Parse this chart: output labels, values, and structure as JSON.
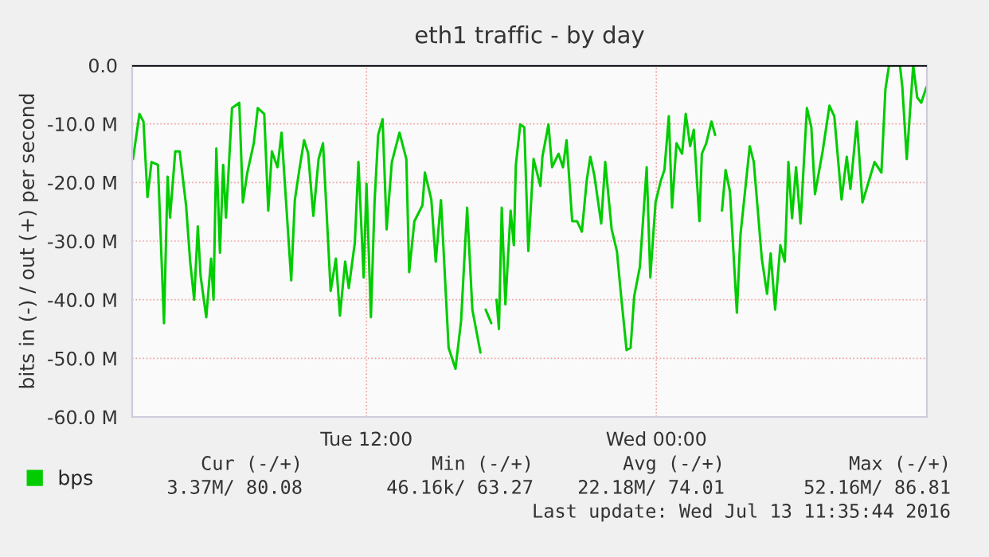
{
  "chart_data": {
    "type": "line",
    "title": "eth1 traffic - by day",
    "ylabel": "bits in (-) / out (+) per second",
    "xlim": [
      "2016-07-12T02:18",
      "2016-07-13T11:12"
    ],
    "xticks": [
      {
        "value": "2016-07-12T12:00",
        "label": "Tue 12:00"
      },
      {
        "value": "2016-07-13T00:00",
        "label": "Wed 00:00"
      }
    ],
    "ylim": [
      -60,
      0
    ],
    "yticks": [
      {
        "value": -60,
        "label": "-60.0 M"
      },
      {
        "value": -50,
        "label": "-50.0 M"
      },
      {
        "value": -40,
        "label": "-40.0 M"
      },
      {
        "value": -30,
        "label": "-30.0 M"
      },
      {
        "value": -20,
        "label": "-20.0 M"
      },
      {
        "value": -10,
        "label": "-10.0 M"
      },
      {
        "value": 0,
        "label": "0.0"
      }
    ],
    "grid": true,
    "legend": "bottom left",
    "marker": "none",
    "line_style": "solid",
    "ref_lines": [
      {
        "axis": "y",
        "value": 0,
        "color": "#000000"
      }
    ],
    "series": [
      {
        "name": "bps",
        "color": "#00cc00",
        "x": [
          "2016-07-12T02:20",
          "2016-07-12T02:36",
          "2016-07-12T02:46",
          "2016-07-12T02:56",
          "2016-07-12T03:06",
          "2016-07-12T03:22",
          "2016-07-12T03:37",
          "2016-07-12T03:46",
          "2016-07-12T03:52",
          "2016-07-12T04:05",
          "2016-07-12T04:16",
          "2016-07-12T04:32",
          "2016-07-12T04:42",
          "2016-07-12T04:52",
          "2016-07-12T05:01",
          "2016-07-12T05:08",
          "2016-07-12T05:22",
          "2016-07-12T05:34",
          "2016-07-12T05:40",
          "2016-07-12T05:47",
          "2016-07-12T05:56",
          "2016-07-12T06:04",
          "2016-07-12T06:11",
          "2016-07-12T06:26",
          "2016-07-12T06:44",
          "2016-07-12T06:53",
          "2016-07-12T07:04",
          "2016-07-12T07:20",
          "2016-07-12T07:30",
          "2016-07-12T07:46",
          "2016-07-12T07:56",
          "2016-07-12T08:05",
          "2016-07-12T08:19",
          "2016-07-12T08:29",
          "2016-07-12T08:53",
          "2016-07-12T09:02",
          "2016-07-12T09:13",
          "2016-07-12T09:25",
          "2016-07-12T09:35",
          "2016-07-12T09:48",
          "2016-07-12T10:01",
          "2016-07-12T10:12",
          "2016-07-12T10:31",
          "2016-07-12T10:44",
          "2016-07-12T10:54",
          "2016-07-12T11:07",
          "2016-07-12T11:16",
          "2016-07-12T11:31",
          "2016-07-12T11:40",
          "2016-07-12T11:53",
          "2016-07-12T12:00",
          "2016-07-12T12:11",
          "2016-07-12T12:20",
          "2016-07-12T12:29",
          "2016-07-12T12:40",
          "2016-07-12T12:50",
          "2016-07-12T13:03",
          "2016-07-12T13:22",
          "2016-07-12T13:39",
          "2016-07-12T13:46",
          "2016-07-12T13:59",
          "2016-07-12T14:19",
          "2016-07-12T14:25",
          "2016-07-12T14:41",
          "2016-07-12T14:52",
          "2016-07-12T15:05",
          "2016-07-12T15:24",
          "2016-07-12T15:41",
          "2016-07-12T15:55",
          "2016-07-12T16:10",
          "2016-07-12T16:23",
          "2016-07-12T16:37",
          "2016-07-12T16:43",
          "2016-07-12T16:50",
          "2016-07-12T16:56",
          "2016-07-12T17:10",
          "2016-07-12T17:16",
          "2016-07-12T17:23",
          "2016-07-12T17:29",
          "2016-07-12T17:36",
          "2016-07-12T17:45",
          "2016-07-12T17:58",
          "2016-07-12T18:06",
          "2016-07-12T18:11",
          "2016-07-12T18:22",
          "2016-07-12T18:32",
          "2016-07-12T18:42",
          "2016-07-12T18:55",
          "2016-07-12T19:12",
          "2016-07-12T19:17",
          "2016-07-12T19:32",
          "2016-07-12T19:41",
          "2016-07-12T19:57",
          "2016-07-12T20:08",
          "2016-07-12T20:17",
          "2016-07-12T20:31",
          "2016-07-12T20:43",
          "2016-07-12T20:55",
          "2016-07-12T21:07",
          "2016-07-12T21:16",
          "2016-07-12T21:26",
          "2016-07-12T21:43",
          "2016-07-12T21:53",
          "2016-07-12T22:09",
          "2016-07-12T22:22",
          "2016-07-12T22:32",
          "2016-07-12T22:46",
          "2016-07-12T22:56",
          "2016-07-12T23:05",
          "2016-07-12T23:19",
          "2016-07-12T23:36",
          "2016-07-12T23:45",
          "2016-07-12T23:58",
          "2016-07-13T00:11",
          "2016-07-13T00:20",
          "2016-07-13T00:31",
          "2016-07-13T00:39",
          "2016-07-13T00:50",
          "2016-07-13T01:04",
          "2016-07-13T01:13",
          "2016-07-13T01:24",
          "2016-07-13T01:33",
          "2016-07-13T01:47",
          "2016-07-13T01:53",
          "2016-07-13T02:04",
          "2016-07-13T02:17",
          "2016-07-13T02:26",
          "2016-07-13T02:36",
          "2016-07-13T02:43",
          "2016-07-13T02:52",
          "2016-07-13T03:03",
          "2016-07-13T03:20",
          "2016-07-13T03:29",
          "2016-07-13T03:52",
          "2016-07-13T04:02",
          "2016-07-13T04:22",
          "2016-07-13T04:35",
          "2016-07-13T04:44",
          "2016-07-13T04:55",
          "2016-07-13T05:08",
          "2016-07-13T05:19",
          "2016-07-13T05:28",
          "2016-07-13T05:37",
          "2016-07-13T05:47",
          "2016-07-13T05:58",
          "2016-07-13T06:14",
          "2016-07-13T06:25",
          "2016-07-13T06:34",
          "2016-07-13T06:53",
          "2016-07-13T07:10",
          "2016-07-13T07:22",
          "2016-07-13T07:40",
          "2016-07-13T07:53",
          "2016-07-13T08:02",
          "2016-07-13T08:18",
          "2016-07-13T08:32",
          "2016-07-13T08:52",
          "2016-07-13T09:02",
          "2016-07-13T09:19",
          "2016-07-13T09:29",
          "2016-07-13T09:38",
          "2016-07-13T10:05",
          "2016-07-13T10:11",
          "2016-07-13T10:22",
          "2016-07-13T10:38",
          "2016-07-13T10:48",
          "2016-07-13T10:58",
          "2016-07-13T11:11"
        ],
        "values": [
          -16,
          -8.3,
          -9.6,
          -22.5,
          -16.5,
          -17,
          -44,
          -19,
          -26,
          -14.7,
          -14.7,
          -24,
          -33.5,
          -40,
          -27.5,
          -36,
          -43,
          -33,
          -40,
          -14.2,
          -32,
          -17,
          -26,
          -7.3,
          -6.4,
          -23.4,
          -18.3,
          -13.3,
          -7.3,
          -8.3,
          -24.8,
          -14.7,
          -17.4,
          -11.5,
          -36.7,
          -23,
          -17.9,
          -12.8,
          -15,
          -25.7,
          -16,
          -13.3,
          -38.5,
          -33,
          -42.7,
          -33.5,
          -38,
          -30.3,
          -16.5,
          -36.2,
          -20.2,
          -43,
          -23.4,
          -11.9,
          -9.2,
          -28,
          -16.5,
          -11.5,
          -16,
          -35.3,
          -26.6,
          -23.9,
          -18.3,
          -22.9,
          -33.5,
          -23,
          -48.2,
          -51.8,
          -43.6,
          -24.3,
          -41.7,
          -46.8,
          -49,
          null,
          -41.7,
          -44,
          null,
          -40,
          -45,
          -24.3,
          -40.8,
          -24.8,
          -30.7,
          -17,
          -10.1,
          -10.6,
          -31.7,
          -16,
          -20.6,
          -15.6,
          -10.1,
          -17.4,
          -15.1,
          -17.4,
          -12.8,
          -26.6,
          -26.6,
          -28.4,
          -19.7,
          -15.6,
          -18.8,
          -27,
          -16.5,
          -28,
          -31.7,
          -39,
          -48.6,
          -48.2,
          -39.4,
          -34.4,
          -17.4,
          -36.2,
          -23.4,
          -19.7,
          -17.9,
          -8.7,
          -24.3,
          -13.3,
          -15.1,
          -8.3,
          -13.8,
          -11,
          -26.6,
          -15.1,
          -13.3,
          -9.6,
          -11.9,
          null,
          -24.8,
          -17.9,
          -21.6,
          -42.2,
          -28.9,
          -13.8,
          -16.5,
          -33,
          -39,
          -32.1,
          -41.7,
          -30.7,
          -33.5,
          -16.5,
          -26.1,
          -17.4,
          -27,
          -7.3,
          -10.6,
          -22,
          -14.7,
          -6.9,
          -8.7,
          -22.9,
          -15.6,
          -21.1,
          -9.6,
          -23.4,
          -18.8,
          -16.5,
          -18.3,
          -4.1,
          0,
          0,
          -3.7,
          -16,
          0,
          -5.5,
          -6.4,
          -3.7
        ]
      }
    ],
    "annotations": [
      "Cur (-/+)",
      "Min (-/+)",
      "Avg (-/+)",
      "Max (-/+)",
      "3.37M/ 80.08",
      "46.16k/ 63.27",
      "22.18M/ 74.01",
      "52.16M/ 86.81",
      "Last update: Wed Jul 13 11:35:44 2016"
    ]
  }
}
